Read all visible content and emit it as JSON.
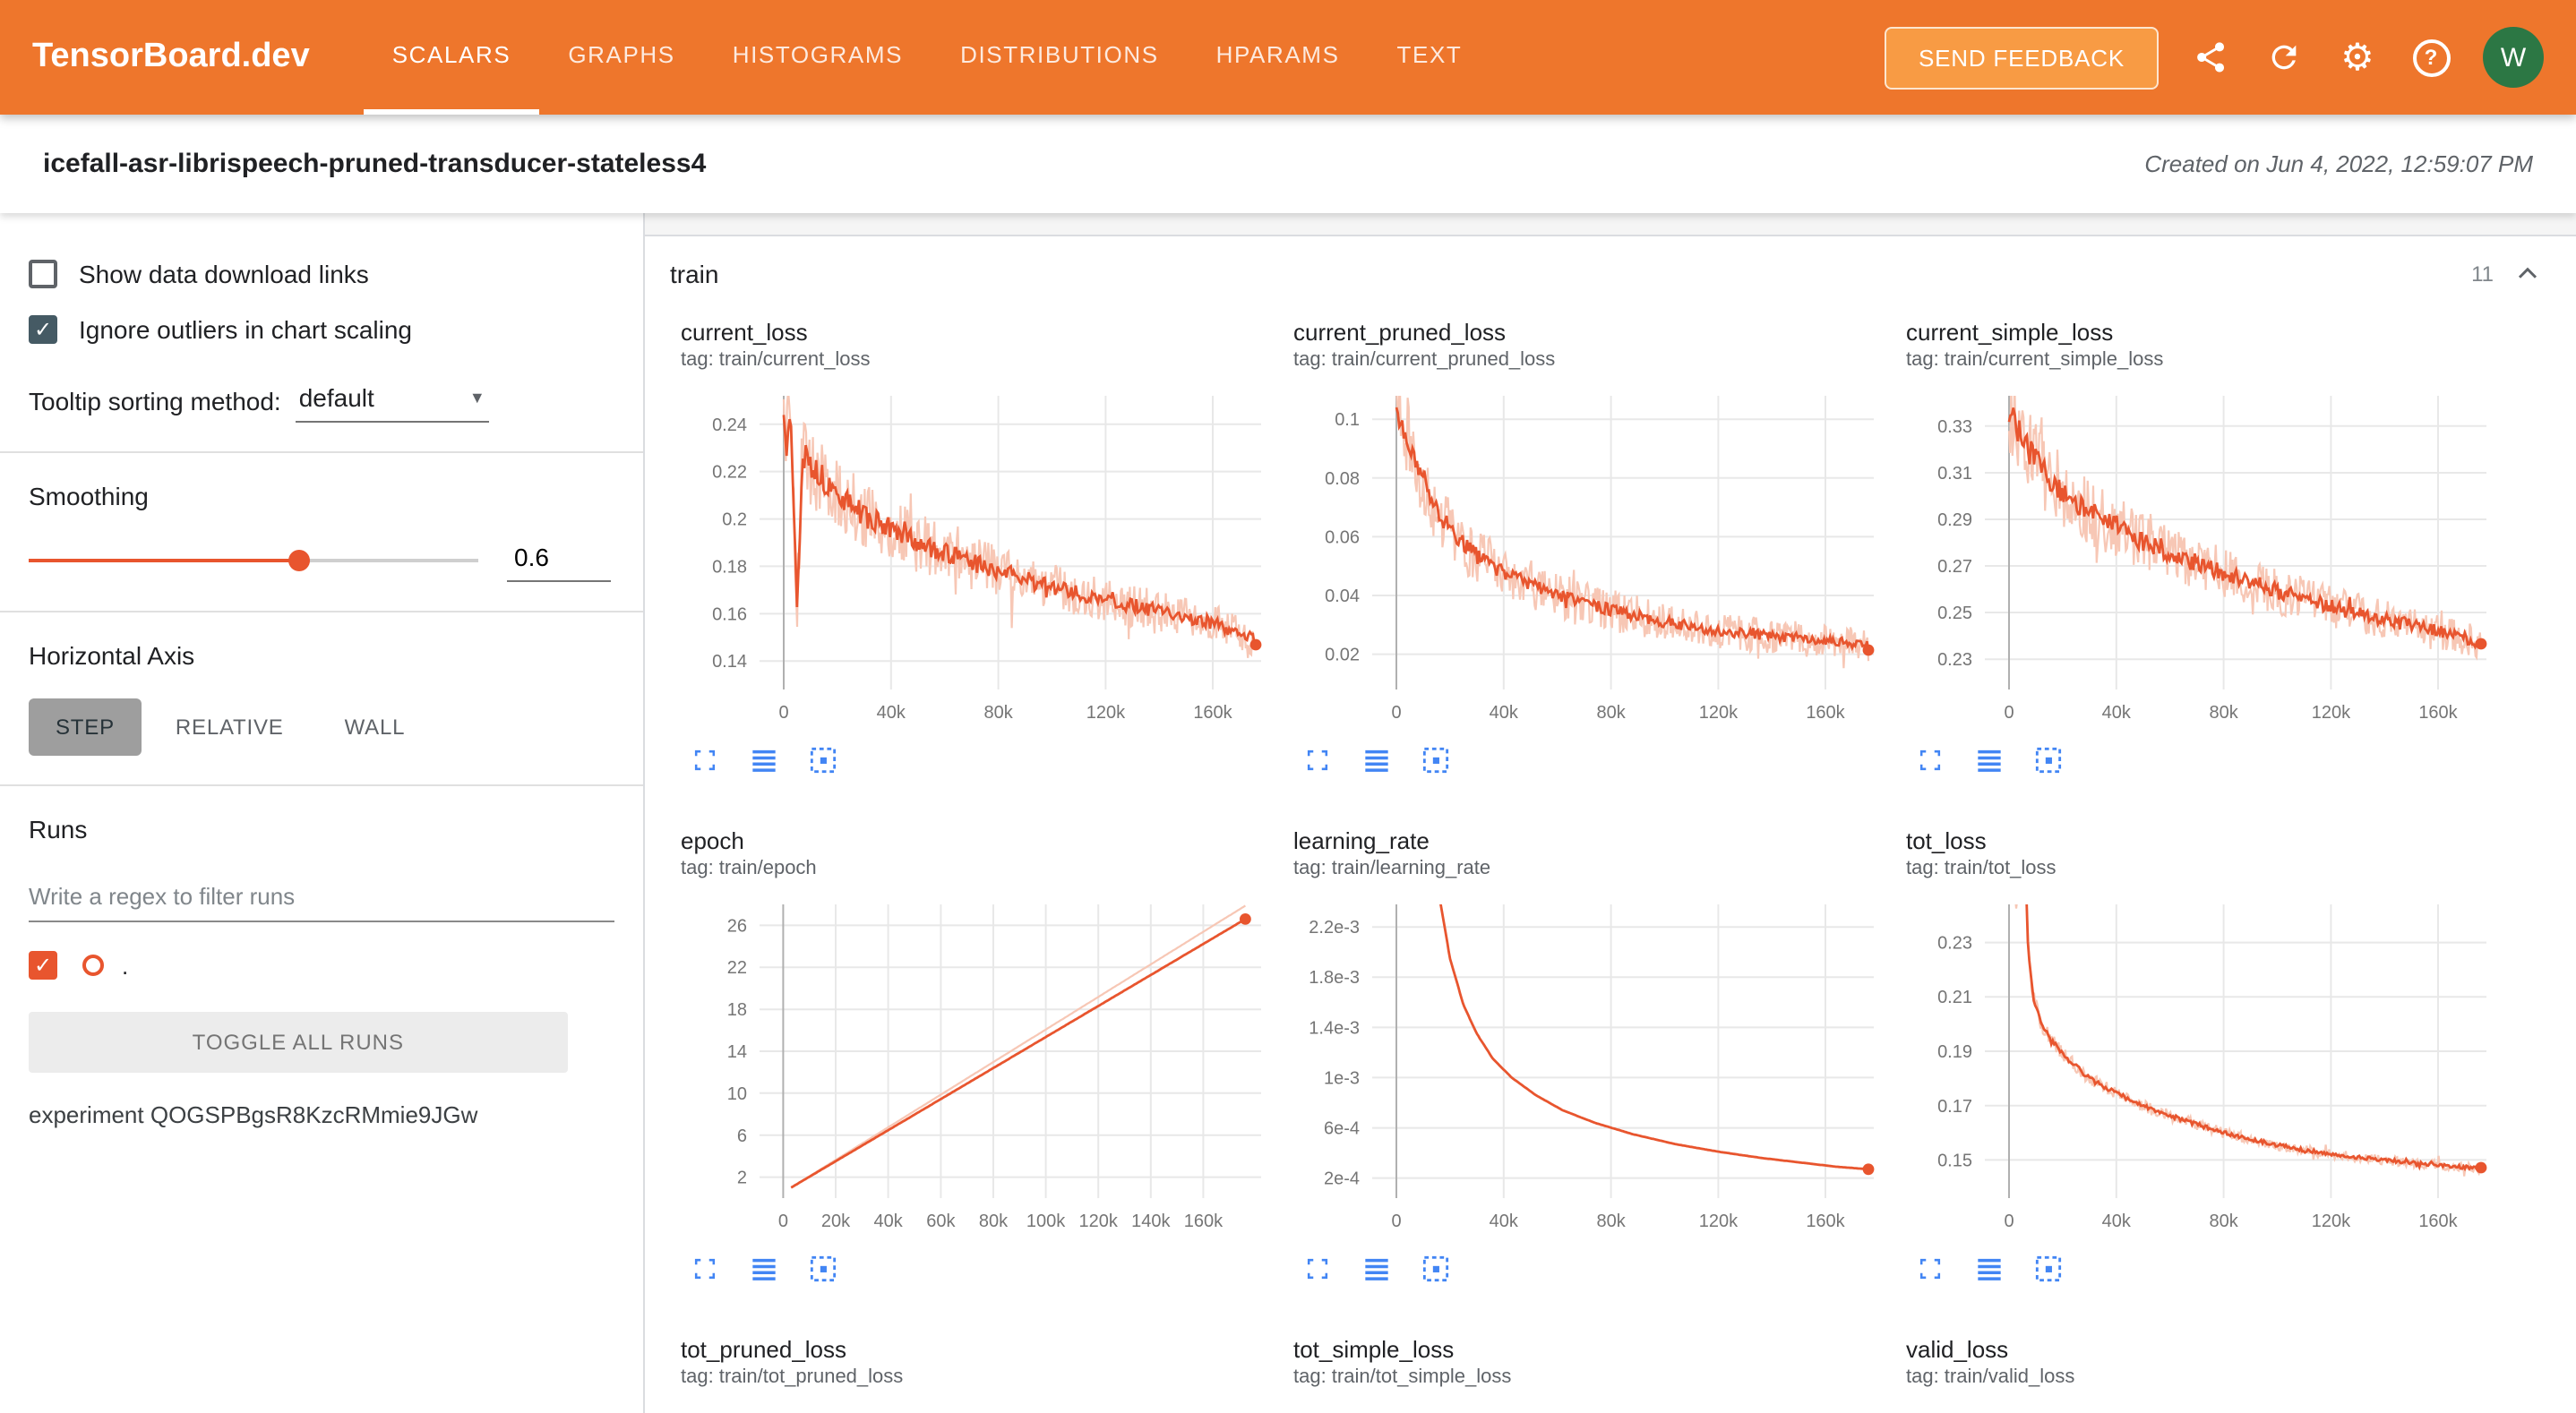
{
  "header": {
    "logo": "TensorBoard.dev",
    "tabs": [
      {
        "label": "SCALARS",
        "active": true
      },
      {
        "label": "GRAPHS",
        "active": false
      },
      {
        "label": "HISTOGRAMS",
        "active": false
      },
      {
        "label": "DISTRIBUTIONS",
        "active": false
      },
      {
        "label": "HPARAMS",
        "active": false
      },
      {
        "label": "TEXT",
        "active": false
      }
    ],
    "feedback_button": "SEND FEEDBACK",
    "avatar": "W"
  },
  "title_bar": {
    "experiment_title": "icefall-asr-librispeech-pruned-transducer-stateless4",
    "created": "Created on Jun 4, 2022, 12:59:07 PM"
  },
  "sidebar": {
    "show_download_label": "Show data download links",
    "ignore_outliers_label": "Ignore outliers in chart scaling",
    "tooltip_label": "Tooltip sorting method:",
    "tooltip_value": "default",
    "smoothing_label": "Smoothing",
    "smoothing_value": "0.6",
    "axis_label": "Horizontal Axis",
    "axis_buttons": [
      {
        "label": "STEP",
        "active": true
      },
      {
        "label": "RELATIVE",
        "active": false
      },
      {
        "label": "WALL",
        "active": false
      }
    ],
    "runs_label": "Runs",
    "filter_placeholder": "Write a regex to filter runs",
    "run_name": ".",
    "toggle_all_label": "TOGGLE ALL RUNS",
    "experiment_line": "experiment QOGSPBgsR8KzcRMmie9JGw"
  },
  "main": {
    "group": "train",
    "count": "11"
  },
  "colors": {
    "header_orange": "#ee762c",
    "line": "#e8552e",
    "raw_line": "#f7c7b5",
    "icon_blue": "#4285f4",
    "avatar_green": "#2c7744"
  },
  "chart_data": [
    {
      "id": "current_loss",
      "type": "line",
      "title": "current_loss",
      "tag": "tag: train/current_loss",
      "x_domain": [
        -9000,
        178000
      ],
      "x_ticks": [
        0,
        40000,
        80000,
        120000,
        160000
      ],
      "x_tick_labels": [
        "0",
        "40k",
        "80k",
        "120k",
        "160k"
      ],
      "y_domain": [
        0.128,
        0.252
      ],
      "y_ticks": [
        0.14,
        0.16,
        0.18,
        0.2,
        0.22,
        0.24
      ],
      "y_tick_labels": [
        "0.14",
        "0.16",
        "0.18",
        "0.2",
        "0.22",
        "0.24"
      ],
      "trend": [
        [
          0,
          0.243
        ],
        [
          3000,
          0.235
        ],
        [
          5000,
          0.16
        ],
        [
          7000,
          0.228
        ],
        [
          12000,
          0.22
        ],
        [
          20000,
          0.21
        ],
        [
          32000,
          0.2
        ],
        [
          48000,
          0.191
        ],
        [
          64000,
          0.184
        ],
        [
          80000,
          0.178
        ],
        [
          100000,
          0.171
        ],
        [
          120000,
          0.166
        ],
        [
          140000,
          0.161
        ],
        [
          160000,
          0.156
        ],
        [
          176000,
          0.149
        ]
      ],
      "smooth_noise": 0.007,
      "raw_noise": 0.02,
      "raw_gain": 0,
      "end_dot": true
    },
    {
      "id": "current_pruned_loss",
      "type": "line",
      "title": "current_pruned_loss",
      "tag": "tag: train/current_pruned_loss",
      "x_domain": [
        -9000,
        178000
      ],
      "x_ticks": [
        0,
        40000,
        80000,
        120000,
        160000
      ],
      "x_tick_labels": [
        "0",
        "40k",
        "80k",
        "120k",
        "160k"
      ],
      "y_domain": [
        0.008,
        0.108
      ],
      "y_ticks": [
        0.02,
        0.04,
        0.06,
        0.08,
        0.1
      ],
      "y_tick_labels": [
        "0.02",
        "0.04",
        "0.06",
        "0.08",
        "0.1"
      ],
      "trend": [
        [
          0,
          0.103
        ],
        [
          4000,
          0.094
        ],
        [
          8000,
          0.083
        ],
        [
          14000,
          0.071
        ],
        [
          22000,
          0.06
        ],
        [
          32000,
          0.052
        ],
        [
          44000,
          0.046
        ],
        [
          60000,
          0.04
        ],
        [
          80000,
          0.035
        ],
        [
          100000,
          0.031
        ],
        [
          120000,
          0.028
        ],
        [
          140000,
          0.026
        ],
        [
          160000,
          0.0245
        ],
        [
          176000,
          0.023
        ]
      ],
      "smooth_noise": 0.0045,
      "raw_noise": 0.016,
      "raw_gain": 0,
      "end_dot": true
    },
    {
      "id": "current_simple_loss",
      "type": "line",
      "title": "current_simple_loss",
      "tag": "tag: train/current_simple_loss",
      "x_domain": [
        -9000,
        178000
      ],
      "x_ticks": [
        0,
        40000,
        80000,
        120000,
        160000
      ],
      "x_tick_labels": [
        "0",
        "40k",
        "80k",
        "120k",
        "160k"
      ],
      "y_domain": [
        0.217,
        0.343
      ],
      "y_ticks": [
        0.23,
        0.25,
        0.27,
        0.29,
        0.31,
        0.33
      ],
      "y_tick_labels": [
        "0.23",
        "0.25",
        "0.27",
        "0.29",
        "0.31",
        "0.33"
      ],
      "trend": [
        [
          0,
          0.336
        ],
        [
          6000,
          0.323
        ],
        [
          12000,
          0.312
        ],
        [
          20000,
          0.302
        ],
        [
          32000,
          0.292
        ],
        [
          48000,
          0.282
        ],
        [
          64000,
          0.274
        ],
        [
          80000,
          0.267
        ],
        [
          100000,
          0.259
        ],
        [
          120000,
          0.2525
        ],
        [
          140000,
          0.247
        ],
        [
          160000,
          0.242
        ],
        [
          176000,
          0.237
        ]
      ],
      "smooth_noise": 0.007,
      "raw_noise": 0.02,
      "raw_gain": 0,
      "end_dot": true
    },
    {
      "id": "epoch",
      "type": "line",
      "title": "epoch",
      "tag": "tag: train/epoch",
      "x_domain": [
        -9000,
        182000
      ],
      "x_ticks": [
        0,
        20000,
        40000,
        60000,
        80000,
        100000,
        120000,
        140000,
        160000
      ],
      "x_tick_labels": [
        "0",
        "20k",
        "40k",
        "60k",
        "80k",
        "100k",
        "120k",
        "140k",
        "160k"
      ],
      "y_domain": [
        0,
        28
      ],
      "y_ticks": [
        2,
        6,
        10,
        14,
        18,
        22,
        26
      ],
      "y_tick_labels": [
        "2",
        "6",
        "10",
        "14",
        "18",
        "22",
        "26"
      ],
      "trend": [
        [
          3000,
          1
        ],
        [
          176000,
          26.6
        ]
      ],
      "smooth_noise": 0,
      "raw_noise": 0,
      "raw_gain": 0.05,
      "end_dot": true
    },
    {
      "id": "learning_rate",
      "type": "line",
      "title": "learning_rate",
      "tag": "tag: train/learning_rate",
      "x_domain": [
        -9000,
        178000
      ],
      "x_ticks": [
        0,
        40000,
        80000,
        120000,
        160000
      ],
      "x_tick_labels": [
        "0",
        "40k",
        "80k",
        "120k",
        "160k"
      ],
      "y_domain": [
        4e-05,
        0.00238
      ],
      "y_ticks": [
        0.0002,
        0.0006,
        0.001,
        0.0014,
        0.0018,
        0.0022
      ],
      "y_tick_labels": [
        "2e-4",
        "6e-4",
        "1e-3",
        "1.4e-3",
        "1.8e-3",
        "2.2e-3"
      ],
      "trend": [
        [
          8000,
          0.005
        ],
        [
          12000,
          0.0035
        ],
        [
          16000,
          0.00245
        ],
        [
          20000,
          0.00195
        ],
        [
          25000,
          0.00158
        ],
        [
          30000,
          0.00135
        ],
        [
          36000,
          0.00115
        ],
        [
          43000,
          0.001
        ],
        [
          52000,
          0.00086
        ],
        [
          62000,
          0.00074
        ],
        [
          74000,
          0.00064
        ],
        [
          88000,
          0.00055
        ],
        [
          104000,
          0.00047
        ],
        [
          120000,
          0.00041
        ],
        [
          136000,
          0.00036
        ],
        [
          152000,
          0.00032
        ],
        [
          164000,
          0.00029
        ],
        [
          176000,
          0.00027
        ]
      ],
      "smooth_noise": 0,
      "raw_noise": 0,
      "raw_gain": 0,
      "end_dot": true
    },
    {
      "id": "tot_loss",
      "type": "line",
      "title": "tot_loss",
      "tag": "tag: train/tot_loss",
      "x_domain": [
        -9000,
        178000
      ],
      "x_ticks": [
        0,
        40000,
        80000,
        120000,
        160000
      ],
      "x_tick_labels": [
        "0",
        "40k",
        "80k",
        "120k",
        "160k"
      ],
      "y_domain": [
        0.136,
        0.244
      ],
      "y_ticks": [
        0.15,
        0.17,
        0.19,
        0.21,
        0.23
      ],
      "y_tick_labels": [
        "0.15",
        "0.17",
        "0.19",
        "0.21",
        "0.23"
      ],
      "trend": [
        [
          1000,
          0.27
        ],
        [
          3000,
          0.24
        ],
        [
          5000,
          0.3
        ],
        [
          7000,
          0.23
        ],
        [
          9000,
          0.21
        ],
        [
          12000,
          0.2
        ],
        [
          16000,
          0.194
        ],
        [
          22000,
          0.187
        ],
        [
          30000,
          0.18
        ],
        [
          40000,
          0.1745
        ],
        [
          52000,
          0.169
        ],
        [
          64000,
          0.165
        ],
        [
          80000,
          0.16
        ],
        [
          100000,
          0.1555
        ],
        [
          120000,
          0.152
        ],
        [
          140000,
          0.15
        ],
        [
          160000,
          0.148
        ],
        [
          176000,
          0.147
        ]
      ],
      "smooth_noise": 0.0018,
      "raw_noise": 0.005,
      "raw_gain": 0,
      "end_dot": true
    },
    {
      "id": "tot_pruned_loss",
      "type": "line",
      "title": "tot_pruned_loss",
      "tag": "tag: train/tot_pruned_loss",
      "trend": []
    },
    {
      "id": "tot_simple_loss",
      "type": "line",
      "title": "tot_simple_loss",
      "tag": "tag: train/tot_simple_loss",
      "trend": []
    },
    {
      "id": "valid_loss",
      "type": "line",
      "title": "valid_loss",
      "tag": "tag: train/valid_loss",
      "trend": []
    }
  ]
}
